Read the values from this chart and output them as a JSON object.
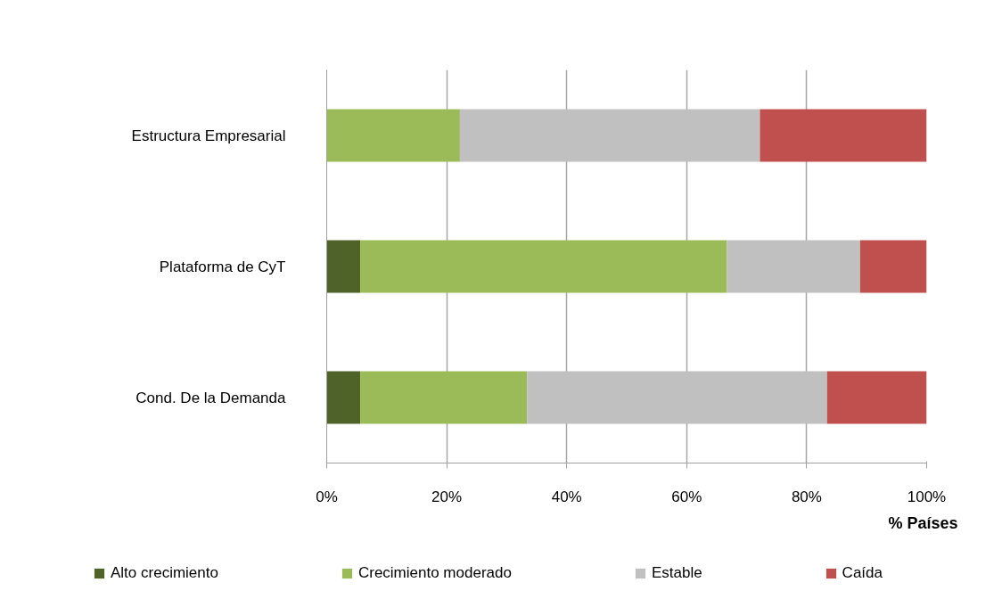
{
  "chart_data": {
    "type": "bar",
    "orientation": "horizontal",
    "stacked": true,
    "categories": [
      "Estructura Empresarial",
      "Plataforma de CyT",
      "Cond. De la Demanda"
    ],
    "series": [
      {
        "name": "Alto crecimiento",
        "color": "#4f6228",
        "values": [
          null,
          5.6,
          5.6
        ]
      },
      {
        "name": "Crecimiento moderado",
        "color": "#9bbb59",
        "values": [
          22.2,
          61.1,
          27.8
        ]
      },
      {
        "name": "Estable",
        "color": "#c0c0c0",
        "values": [
          50,
          22.2,
          50
        ]
      },
      {
        "name": "Caída",
        "color": "#c0504d",
        "values": [
          27.8,
          11.1,
          16.6
        ]
      }
    ],
    "xlim": [
      0,
      100
    ],
    "xticks": [
      {
        "value": 0,
        "label": "0%"
      },
      {
        "value": 20,
        "label": "20%"
      },
      {
        "value": 40,
        "label": "40%"
      },
      {
        "value": 60,
        "label": "60%"
      },
      {
        "value": 80,
        "label": "80%"
      },
      {
        "value": 100,
        "label": "100%"
      }
    ],
    "xlabel": "% Países",
    "grid": "x",
    "legend": "bottom"
  }
}
